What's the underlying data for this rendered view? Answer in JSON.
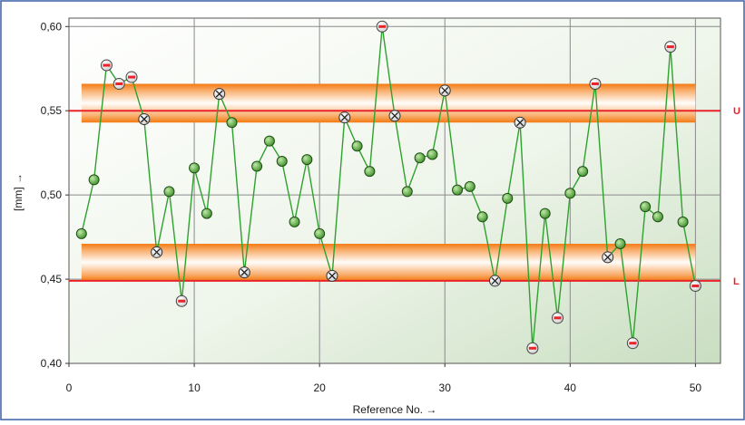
{
  "chart_data": {
    "type": "line",
    "title": "",
    "xlabel": "Reference No. →",
    "ylabel": "[mm] →",
    "xlim": [
      0,
      52
    ],
    "ylim": [
      0.4,
      0.605
    ],
    "x_ticks": [
      0,
      10,
      20,
      30,
      40,
      50
    ],
    "x_tick_labels": [
      "0",
      "10",
      "20",
      "30",
      "40",
      "50"
    ],
    "y_ticks": [
      0.4,
      0.45,
      0.5,
      0.55,
      0.6
    ],
    "y_tick_labels": [
      "0,40",
      "0,45",
      "0,50",
      "0,55",
      "0,60"
    ],
    "grid": true,
    "limits": [
      {
        "label": "U",
        "value": 0.55,
        "band": [
          0.543,
          0.566
        ],
        "color": "#e8232a"
      },
      {
        "label": "L",
        "value": 0.449,
        "band": [
          0.449,
          0.471
        ],
        "color": "#e8232a"
      }
    ],
    "series": [
      {
        "color": "#2fa12f",
        "x": [
          1,
          2,
          3,
          4,
          5,
          6,
          7,
          8,
          9,
          10,
          11,
          12,
          13,
          14,
          15,
          16,
          17,
          18,
          19,
          20,
          21,
          22,
          23,
          24,
          25,
          26,
          27,
          28,
          29,
          30,
          31,
          32,
          33,
          34,
          35,
          36,
          37,
          38,
          39,
          40,
          41,
          42,
          43,
          44,
          45,
          46,
          47,
          48,
          49,
          50
        ],
        "values": [
          0.477,
          0.509,
          0.577,
          0.566,
          0.57,
          0.545,
          0.466,
          0.502,
          0.437,
          0.516,
          0.489,
          0.56,
          0.543,
          0.454,
          0.517,
          0.532,
          0.52,
          0.484,
          0.521,
          0.477,
          0.452,
          0.546,
          0.529,
          0.514,
          0.6,
          0.547,
          0.502,
          0.522,
          0.524,
          0.562,
          0.503,
          0.505,
          0.487,
          0.449,
          0.498,
          0.543,
          0.409,
          0.489,
          0.427,
          0.501,
          0.514,
          0.566,
          0.463,
          0.471,
          0.412,
          0.493,
          0.487,
          0.588,
          0.484,
          0.446
        ],
        "marker_types": [
          "ok",
          "ok",
          "out",
          "out",
          "out",
          "x",
          "x",
          "ok",
          "out",
          "ok",
          "ok",
          "x",
          "ok",
          "x",
          "ok",
          "ok",
          "ok",
          "ok",
          "ok",
          "ok",
          "x",
          "x",
          "ok",
          "ok",
          "out",
          "x",
          "ok",
          "ok",
          "ok",
          "x",
          "ok",
          "ok",
          "ok",
          "x",
          "ok",
          "x",
          "out",
          "ok",
          "out",
          "ok",
          "ok",
          "out",
          "x",
          "ok",
          "out",
          "ok",
          "ok",
          "out",
          "ok",
          "out"
        ]
      }
    ]
  }
}
